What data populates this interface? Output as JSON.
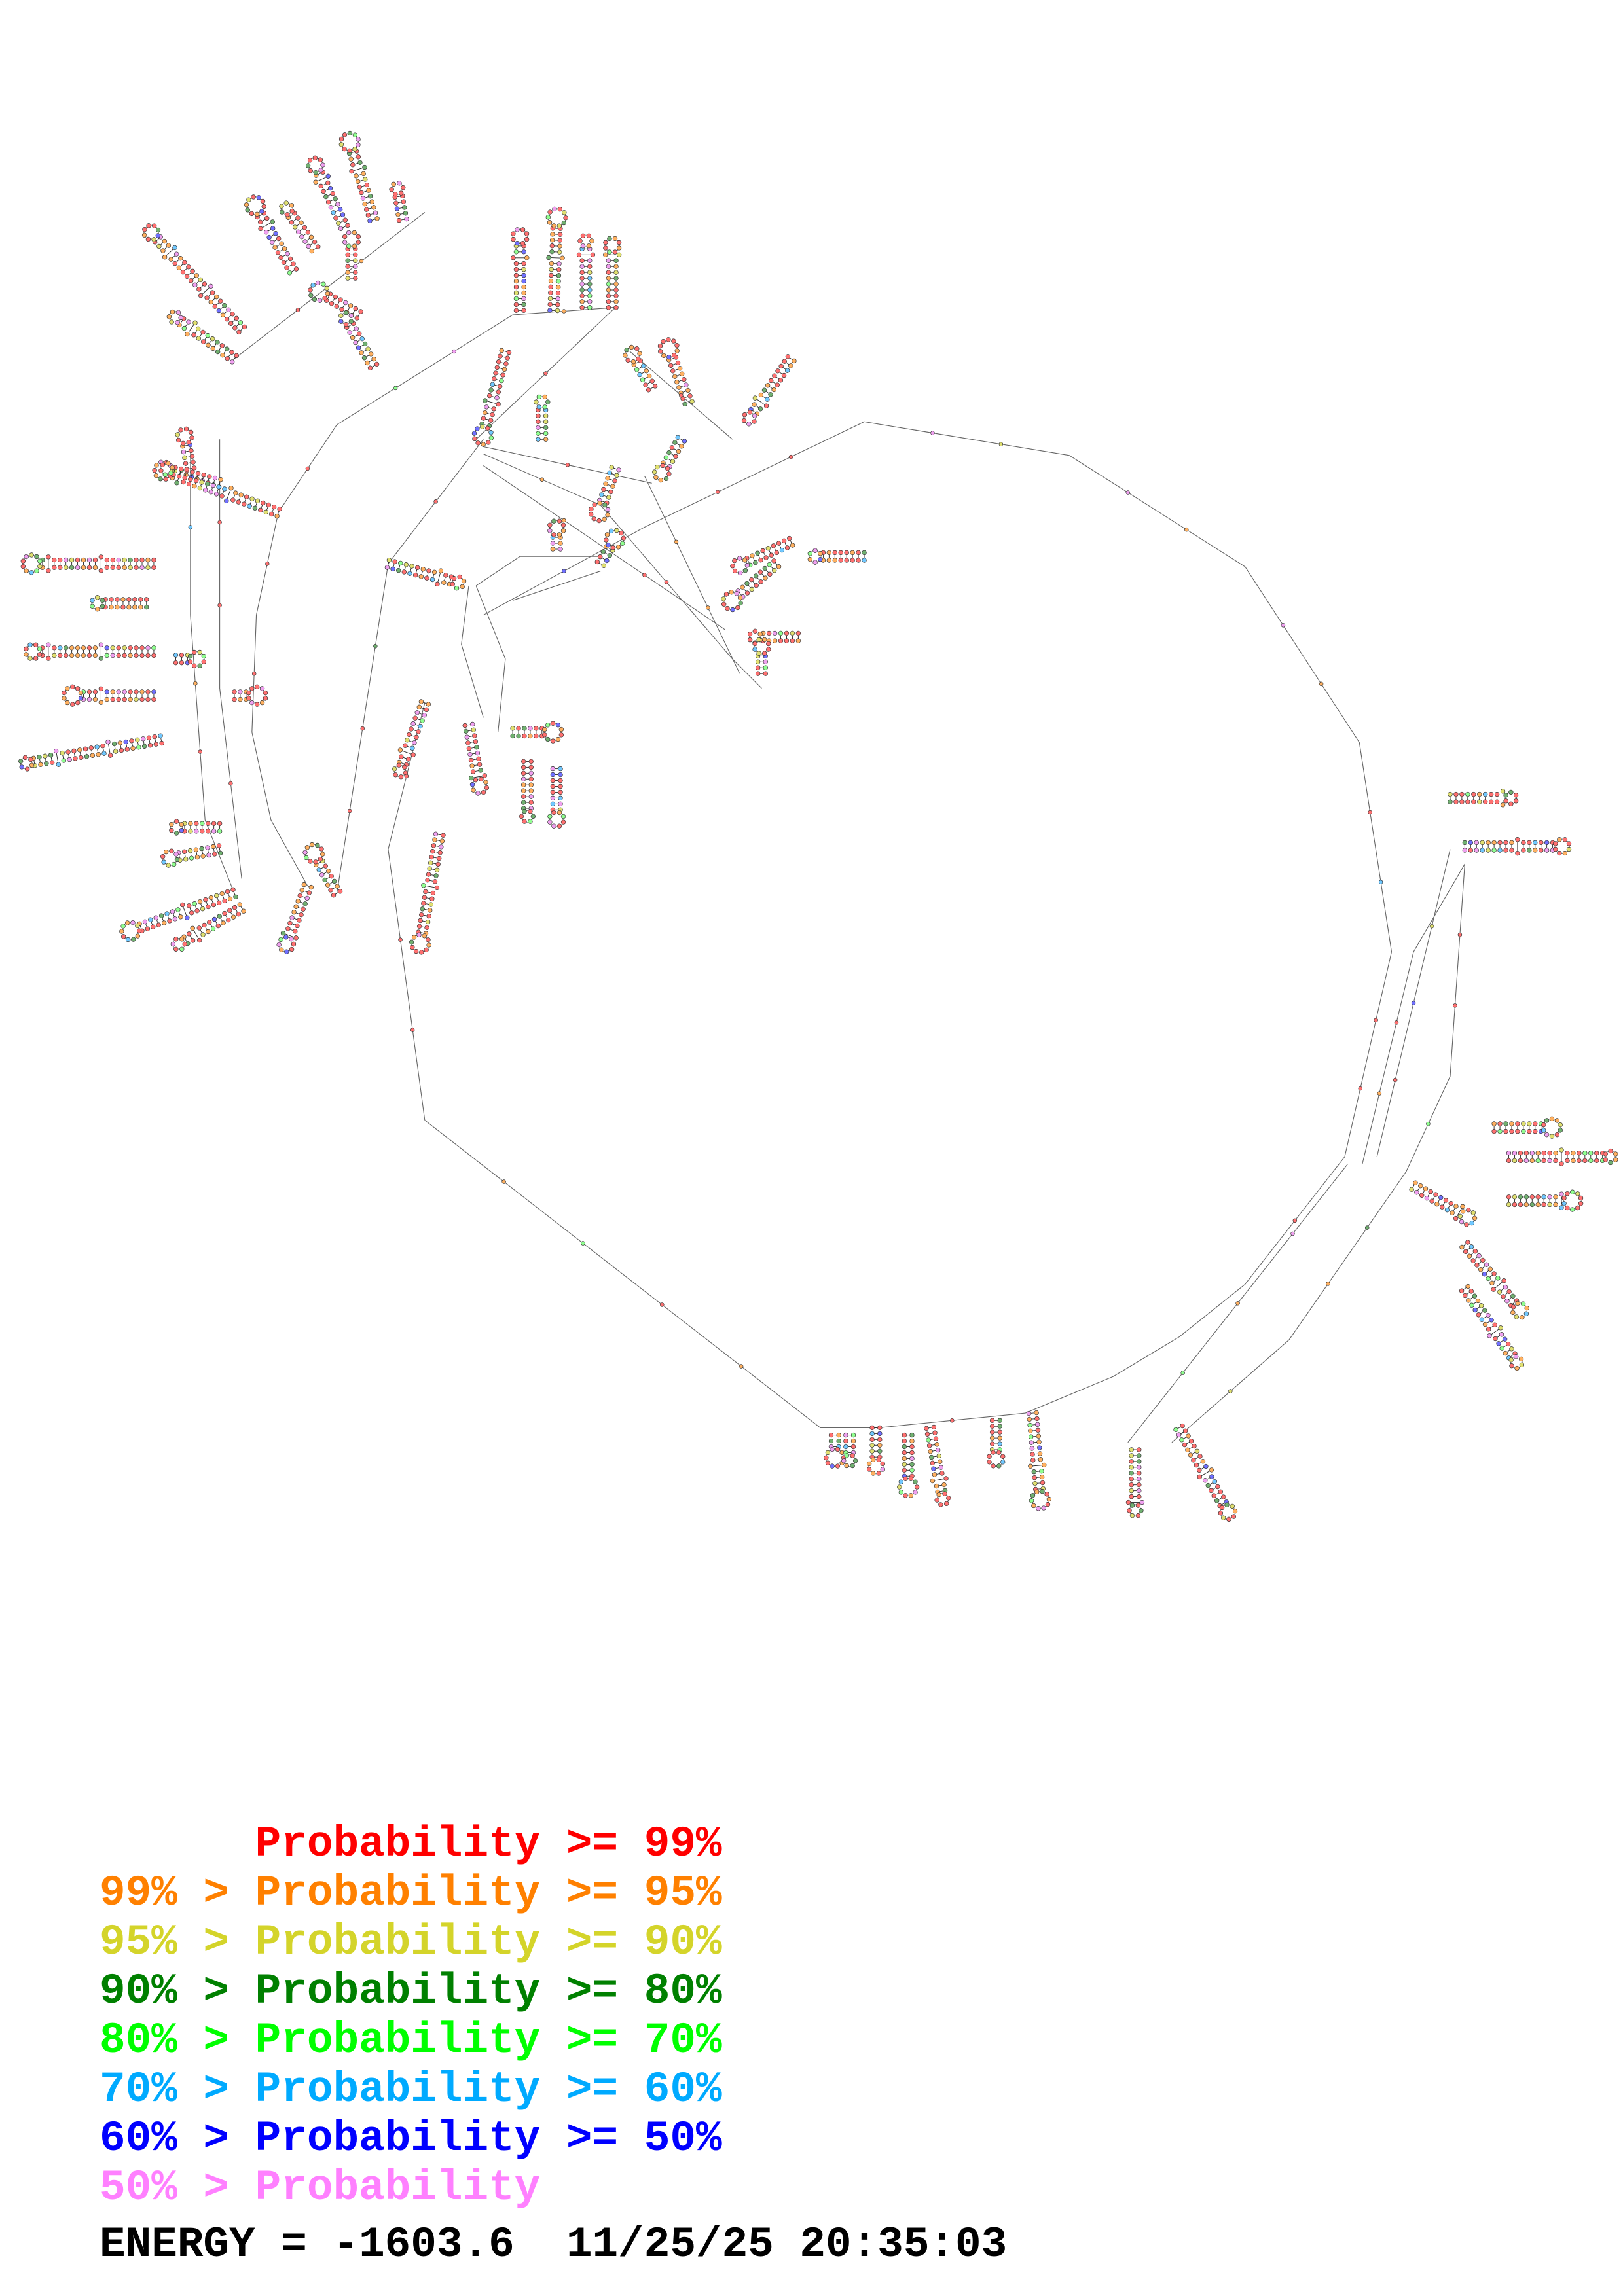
{
  "legend": {
    "items": [
      {
        "text": "Probability >= 99%",
        "color": "#ff0000"
      },
      {
        "text": "99% > Probability >= 95%",
        "color": "#ff8000"
      },
      {
        "text": "95% > Probability >= 90%",
        "color": "#d4d42a"
      },
      {
        "text": "90% > Probability >= 80%",
        "color": "#008000"
      },
      {
        "text": "80% > Probability >= 70%",
        "color": "#00ff00"
      },
      {
        "text": "70% > Probability >= 60%",
        "color": "#00aaff"
      },
      {
        "text": "60% > Probability >= 50%",
        "color": "#0000ff"
      },
      {
        "text": "50% > Probability",
        "color": "#ff80ff"
      }
    ]
  },
  "footer": {
    "energy_label": "ENERGY =",
    "energy_value": "-1603.6",
    "timestamp": "11/25/25 20:35:03"
  },
  "nucleotide_colors": [
    "#ff7070",
    "#ffb060",
    "#e0e070",
    "#70b070",
    "#90ff90",
    "#70c8ff",
    "#7070ff",
    "#f0a0f0"
  ]
}
